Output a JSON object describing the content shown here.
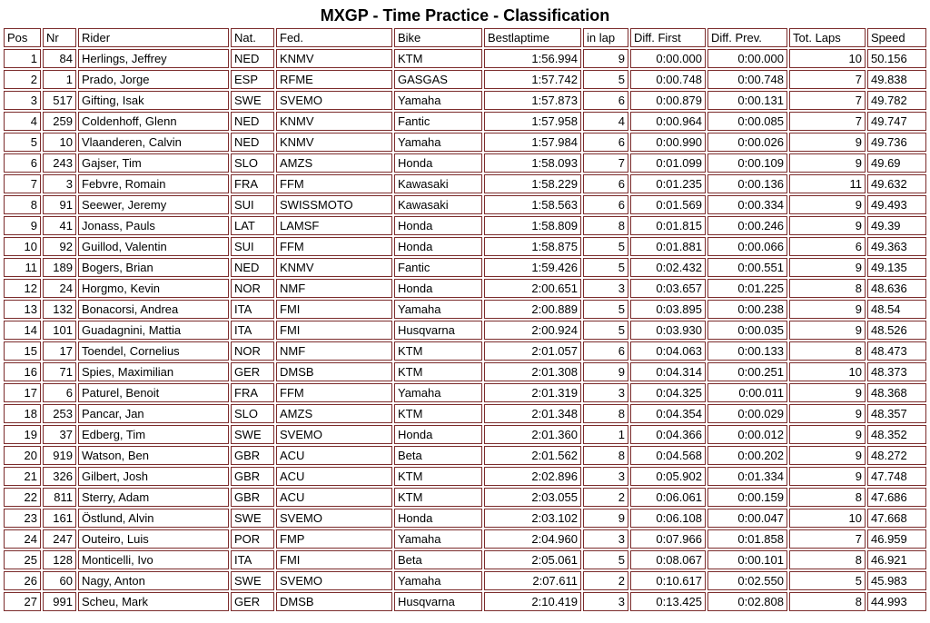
{
  "page": {
    "title": "MXGP - Time Practice - Classification"
  },
  "colors": {
    "border": "#7b2b2b",
    "text": "#000000",
    "background": "#ffffff"
  },
  "table": {
    "columns": [
      {
        "key": "pos",
        "label": "Pos"
      },
      {
        "key": "nr",
        "label": "Nr"
      },
      {
        "key": "rider",
        "label": "Rider"
      },
      {
        "key": "nat",
        "label": "Nat."
      },
      {
        "key": "fed",
        "label": "Fed."
      },
      {
        "key": "bike",
        "label": "Bike"
      },
      {
        "key": "bestlaptime",
        "label": "Bestlaptime"
      },
      {
        "key": "in-lap",
        "label": "in lap"
      },
      {
        "key": "diff-first",
        "label": "Diff. First"
      },
      {
        "key": "diff-prev",
        "label": "Diff. Prev."
      },
      {
        "key": "tot-laps",
        "label": "Tot. Laps"
      },
      {
        "key": "speed",
        "label": "Speed"
      }
    ],
    "rows": [
      [
        "1",
        "84",
        "Herlings, Jeffrey",
        "NED",
        "KNMV",
        "KTM",
        "1:56.994",
        "9",
        "0:00.000",
        "0:00.000",
        "10",
        "50.156"
      ],
      [
        "2",
        "1",
        "Prado, Jorge",
        "ESP",
        "RFME",
        "GASGAS",
        "1:57.742",
        "5",
        "0:00.748",
        "0:00.748",
        "7",
        "49.838"
      ],
      [
        "3",
        "517",
        "Gifting, Isak",
        "SWE",
        "SVEMO",
        "Yamaha",
        "1:57.873",
        "6",
        "0:00.879",
        "0:00.131",
        "7",
        "49.782"
      ],
      [
        "4",
        "259",
        "Coldenhoff, Glenn",
        "NED",
        "KNMV",
        "Fantic",
        "1:57.958",
        "4",
        "0:00.964",
        "0:00.085",
        "7",
        "49.747"
      ],
      [
        "5",
        "10",
        "Vlaanderen, Calvin",
        "NED",
        "KNMV",
        "Yamaha",
        "1:57.984",
        "6",
        "0:00.990",
        "0:00.026",
        "9",
        "49.736"
      ],
      [
        "6",
        "243",
        "Gajser, Tim",
        "SLO",
        "AMZS",
        "Honda",
        "1:58.093",
        "7",
        "0:01.099",
        "0:00.109",
        "9",
        "49.69"
      ],
      [
        "7",
        "3",
        "Febvre, Romain",
        "FRA",
        "FFM",
        "Kawasaki",
        "1:58.229",
        "6",
        "0:01.235",
        "0:00.136",
        "11",
        "49.632"
      ],
      [
        "8",
        "91",
        "Seewer, Jeremy",
        "SUI",
        "SWISSMOTO",
        "Kawasaki",
        "1:58.563",
        "6",
        "0:01.569",
        "0:00.334",
        "9",
        "49.493"
      ],
      [
        "9",
        "41",
        "Jonass, Pauls",
        "LAT",
        "LAMSF",
        "Honda",
        "1:58.809",
        "8",
        "0:01.815",
        "0:00.246",
        "9",
        "49.39"
      ],
      [
        "10",
        "92",
        "Guillod, Valentin",
        "SUI",
        "FFM",
        "Honda",
        "1:58.875",
        "5",
        "0:01.881",
        "0:00.066",
        "6",
        "49.363"
      ],
      [
        "11",
        "189",
        "Bogers, Brian",
        "NED",
        "KNMV",
        "Fantic",
        "1:59.426",
        "5",
        "0:02.432",
        "0:00.551",
        "9",
        "49.135"
      ],
      [
        "12",
        "24",
        "Horgmo, Kevin",
        "NOR",
        "NMF",
        "Honda",
        "2:00.651",
        "3",
        "0:03.657",
        "0:01.225",
        "8",
        "48.636"
      ],
      [
        "13",
        "132",
        "Bonacorsi, Andrea",
        "ITA",
        "FMI",
        "Yamaha",
        "2:00.889",
        "5",
        "0:03.895",
        "0:00.238",
        "9",
        "48.54"
      ],
      [
        "14",
        "101",
        "Guadagnini, Mattia",
        "ITA",
        "FMI",
        "Husqvarna",
        "2:00.924",
        "5",
        "0:03.930",
        "0:00.035",
        "9",
        "48.526"
      ],
      [
        "15",
        "17",
        "Toendel, Cornelius",
        "NOR",
        "NMF",
        "KTM",
        "2:01.057",
        "6",
        "0:04.063",
        "0:00.133",
        "8",
        "48.473"
      ],
      [
        "16",
        "71",
        "Spies, Maximilian",
        "GER",
        "DMSB",
        "KTM",
        "2:01.308",
        "9",
        "0:04.314",
        "0:00.251",
        "10",
        "48.373"
      ],
      [
        "17",
        "6",
        "Paturel, Benoit",
        "FRA",
        "FFM",
        "Yamaha",
        "2:01.319",
        "3",
        "0:04.325",
        "0:00.011",
        "9",
        "48.368"
      ],
      [
        "18",
        "253",
        "Pancar, Jan",
        "SLO",
        "AMZS",
        "KTM",
        "2:01.348",
        "8",
        "0:04.354",
        "0:00.029",
        "9",
        "48.357"
      ],
      [
        "19",
        "37",
        "Edberg, Tim",
        "SWE",
        "SVEMO",
        "Honda",
        "2:01.360",
        "1",
        "0:04.366",
        "0:00.012",
        "9",
        "48.352"
      ],
      [
        "20",
        "919",
        "Watson, Ben",
        "GBR",
        "ACU",
        "Beta",
        "2:01.562",
        "8",
        "0:04.568",
        "0:00.202",
        "9",
        "48.272"
      ],
      [
        "21",
        "326",
        "Gilbert, Josh",
        "GBR",
        "ACU",
        "KTM",
        "2:02.896",
        "3",
        "0:05.902",
        "0:01.334",
        "9",
        "47.748"
      ],
      [
        "22",
        "811",
        "Sterry, Adam",
        "GBR",
        "ACU",
        "KTM",
        "2:03.055",
        "2",
        "0:06.061",
        "0:00.159",
        "8",
        "47.686"
      ],
      [
        "23",
        "161",
        "Östlund, Alvin",
        "SWE",
        "SVEMO",
        "Honda",
        "2:03.102",
        "9",
        "0:06.108",
        "0:00.047",
        "10",
        "47.668"
      ],
      [
        "24",
        "247",
        "Outeiro, Luis",
        "POR",
        "FMP",
        "Yamaha",
        "2:04.960",
        "3",
        "0:07.966",
        "0:01.858",
        "7",
        "46.959"
      ],
      [
        "25",
        "128",
        "Monticelli, Ivo",
        "ITA",
        "FMI",
        "Beta",
        "2:05.061",
        "5",
        "0:08.067",
        "0:00.101",
        "8",
        "46.921"
      ],
      [
        "26",
        "60",
        "Nagy, Anton",
        "SWE",
        "SVEMO",
        "Yamaha",
        "2:07.611",
        "2",
        "0:10.617",
        "0:02.550",
        "5",
        "45.983"
      ],
      [
        "27",
        "991",
        "Scheu, Mark",
        "GER",
        "DMSB",
        "Husqvarna",
        "2:10.419",
        "3",
        "0:13.425",
        "0:02.808",
        "8",
        "44.993"
      ]
    ]
  }
}
